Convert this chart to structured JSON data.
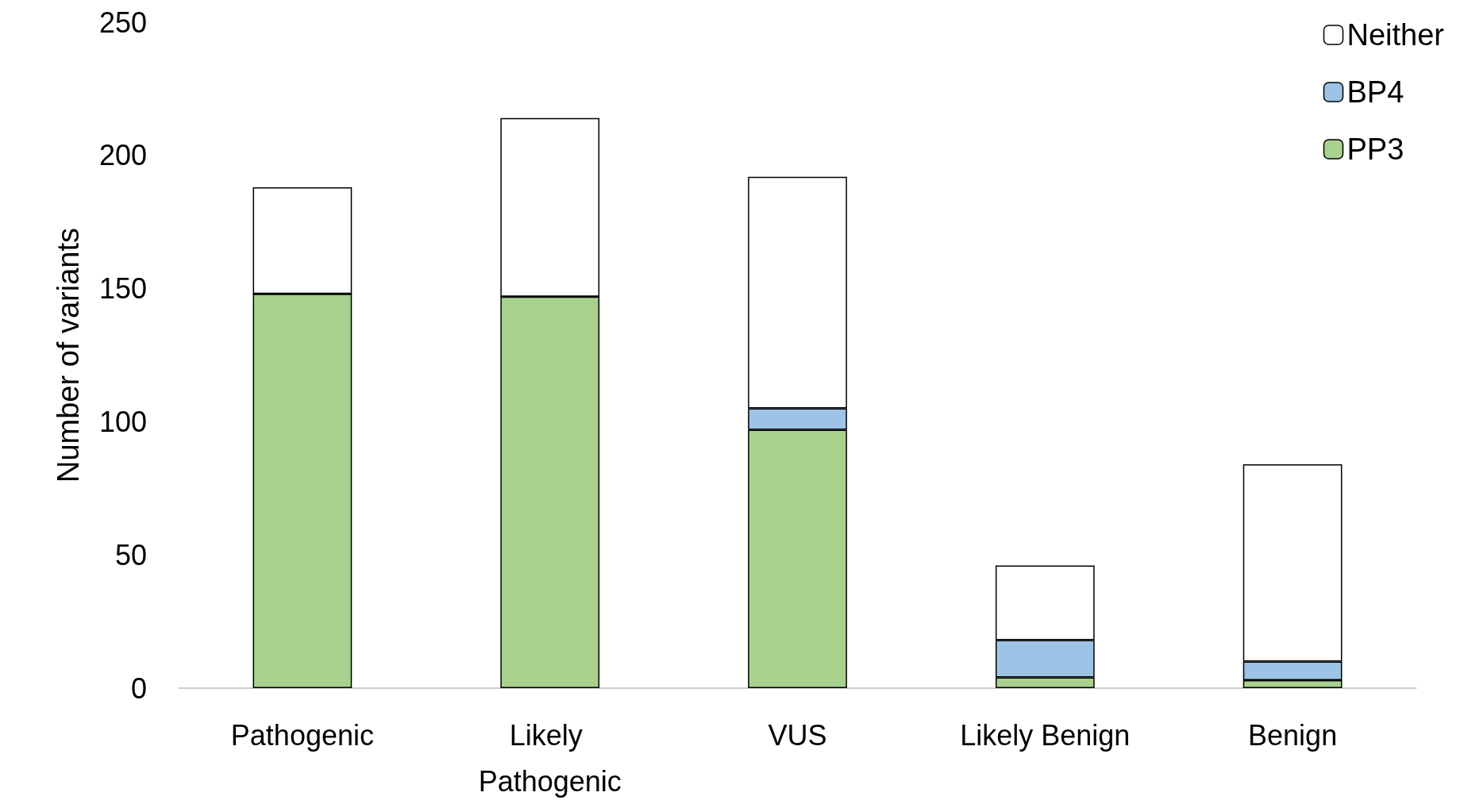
{
  "chart_data": {
    "type": "bar",
    "stacked": true,
    "ylabel": "Number of variants",
    "categories": [
      "Pathogenic",
      "Likely Pathogenic",
      "VUS",
      "Likely Benign",
      "Benign"
    ],
    "series": [
      {
        "name": "PP3",
        "color": "#a9d18e",
        "values": [
          148,
          147,
          97,
          4,
          3
        ]
      },
      {
        "name": "BP4",
        "color": "#9dc3e6",
        "values": [
          0,
          0,
          8,
          14,
          7
        ]
      },
      {
        "name": "Neither",
        "color": "#ffffff",
        "values": [
          40,
          67,
          87,
          28,
          74
        ]
      }
    ],
    "ylim": [
      0,
      250
    ],
    "yticks": [
      0,
      50,
      100,
      150,
      200,
      250
    ],
    "grid": false,
    "legend": "top right"
  }
}
